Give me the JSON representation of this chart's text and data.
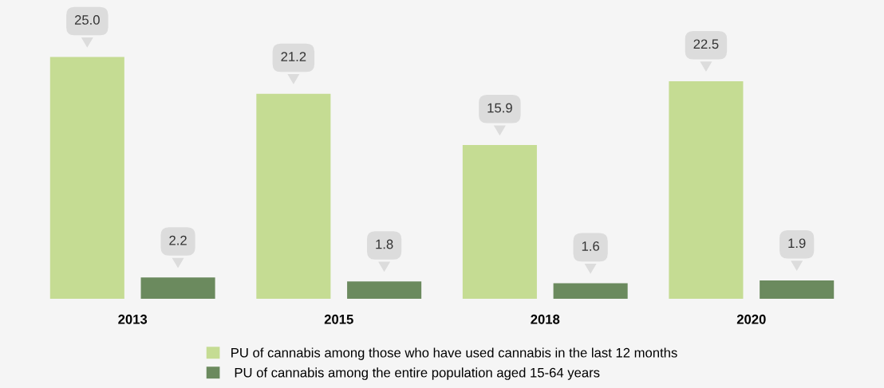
{
  "chart_data": {
    "type": "bar",
    "categories": [
      "2013",
      "2015",
      "2018",
      "2020"
    ],
    "series": [
      {
        "name": "PU of cannabis among those who have used cannabis in the last 12 months",
        "color": "#c5dc93",
        "values": [
          25.0,
          21.2,
          15.9,
          22.5
        ],
        "value_labels": [
          "25.0",
          "21.2",
          "15.9",
          "22.5"
        ]
      },
      {
        "name": " PU of cannabis among the entire population aged 15-64 years",
        "color": "#6b8a5e",
        "values": [
          2.2,
          1.8,
          1.6,
          1.9
        ],
        "value_labels": [
          "2.2",
          "1.8",
          "1.6",
          "1.9"
        ]
      }
    ],
    "legend": "bottom",
    "grid": false
  }
}
